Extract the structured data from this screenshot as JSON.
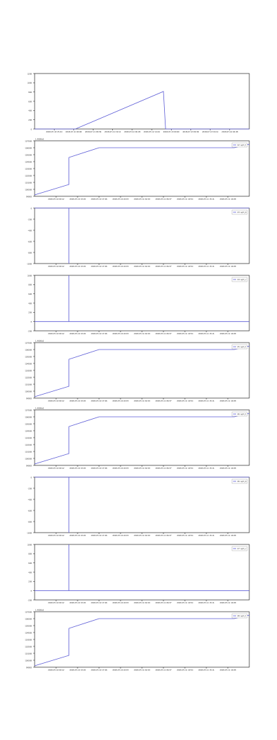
{
  "chart_data": [
    {
      "type": "line",
      "x_labels": [
        "2018-07-10 15:24",
        "2018-07-11 00:00",
        "2018-07-11 09:36",
        "2018-07-11 19:12",
        "2018-07-12 04:48",
        "2018-07-12 14:24",
        "2018-07-13 00:00",
        "2018-07-13 09:36",
        "2018-07-13 19:12",
        "2018-07-14 04:48"
      ],
      "y_ticks": [
        "0",
        "200",
        "400",
        "600",
        "800",
        "1000",
        "1200"
      ],
      "legend": "",
      "points": [
        [
          0,
          0
        ],
        [
          0.19,
          0
        ],
        [
          0.6,
          812
        ],
        [
          0.61,
          0
        ],
        [
          1,
          0
        ]
      ],
      "ylim": [
        0,
        1200
      ],
      "color": "#5b5bd6"
    },
    {
      "type": "line",
      "x_labels": [
        "2018-07-10 09:12",
        "2018-07-10 13:29",
        "2018-07-10 17:46",
        "2018-07-10 22:03",
        "2018-07-11 02:20",
        "2018-07-11 06:37",
        "2018-07-11 10:54",
        "2018-07-11 15:11",
        "2018-07-11 19:28"
      ],
      "y_ticks": [
        "99000",
        "100000",
        "101000",
        "102000",
        "103000",
        "104000",
        "105000",
        "106000",
        "107000"
      ],
      "offset": "1.4000e3",
      "legend": "12: sym_t",
      "points": [
        [
          0,
          99200
        ],
        [
          0.16,
          100700
        ],
        [
          0.16,
          104600
        ],
        [
          0.3,
          106000
        ],
        [
          0.93,
          106000
        ],
        [
          1,
          106500
        ]
      ],
      "ylim": [
        99000,
        107000
      ],
      "color": "#5b5bd6"
    },
    {
      "type": "line",
      "x_labels": [
        "2018-07-10 09:12",
        "2018-07-10 13:29",
        "2018-07-10 17:46",
        "2018-07-10 22:03",
        "2018-07-11 02:20",
        "2018-07-11 06:37",
        "2018-07-11 10:54",
        "2018-07-11 15:11",
        "2018-07-11 19:28"
      ],
      "y_ticks": [
        "0",
        "-200",
        "-400",
        "-600",
        "-800",
        "-1000"
      ],
      "legend": "13: sym_b",
      "points": [
        [
          0,
          0
        ],
        [
          0.16,
          0
        ],
        [
          0.16,
          -1000
        ],
        [
          0.16,
          0
        ],
        [
          1,
          0
        ]
      ],
      "ylim": [
        -1000,
        0
      ],
      "color": "#5b5bd6"
    },
    {
      "type": "line",
      "x_labels": [
        "2018-07-10 09:12",
        "2018-07-10 13:29",
        "2018-07-10 17:46",
        "2018-07-10 22:03",
        "2018-07-11 02:20",
        "2018-07-11 06:37",
        "2018-07-11 10:54",
        "2018-07-11 15:11",
        "2018-07-11 19:28"
      ],
      "y_ticks": [
        "1000",
        "800",
        "600",
        "400",
        "200",
        "0",
        "-200"
      ],
      "legend": "14: sym_c",
      "points": [
        [
          0,
          0
        ],
        [
          0.16,
          0
        ],
        [
          0.16,
          1000
        ],
        [
          0.16,
          0
        ],
        [
          1,
          0
        ]
      ],
      "ylim": [
        -200,
        1000
      ],
      "color": "#5b5bd6"
    },
    {
      "type": "line",
      "x_labels": [
        "2018-07-10 09:12",
        "2018-07-10 13:29",
        "2018-07-10 17:46",
        "2018-07-10 22:03",
        "2018-07-11 02:20",
        "2018-07-11 06:37",
        "2018-07-11 10:54",
        "2018-07-11 15:11",
        "2018-07-11 19:28"
      ],
      "y_ticks": [
        "99000",
        "100000",
        "101000",
        "102000",
        "103000",
        "104000",
        "105000",
        "106000",
        "107000"
      ],
      "offset": "1.4000e3",
      "legend": "15: sym_t",
      "points": [
        [
          0,
          99200
        ],
        [
          0.16,
          100700
        ],
        [
          0.16,
          104600
        ],
        [
          0.3,
          106000
        ],
        [
          0.93,
          106000
        ],
        [
          1,
          106500
        ]
      ],
      "ylim": [
        99000,
        107000
      ],
      "color": "#5b5bd6"
    },
    {
      "type": "line",
      "x_labels": [
        "2018-07-10 09:12",
        "2018-07-10 13:29",
        "2018-07-10 17:46",
        "2018-07-10 22:03",
        "2018-07-11 02:20",
        "2018-07-11 06:37",
        "2018-07-11 10:54",
        "2018-07-11 15:11",
        "2018-07-11 19:28"
      ],
      "y_ticks": [
        "99000",
        "100000",
        "101000",
        "102000",
        "103000",
        "104000",
        "105000",
        "106000",
        "107000"
      ],
      "offset": "1.4000e3",
      "legend": "16: sym_t",
      "points": [
        [
          0,
          99200
        ],
        [
          0.16,
          100700
        ],
        [
          0.16,
          104600
        ],
        [
          0.3,
          106000
        ],
        [
          0.93,
          106000
        ],
        [
          1,
          106500
        ]
      ],
      "ylim": [
        99000,
        107000
      ],
      "color": "#5b5bd6"
    },
    {
      "type": "line",
      "x_labels": [
        "2018-07-10 09:12",
        "2018-07-10 13:29",
        "2018-07-10 17:46",
        "2018-07-10 22:03",
        "2018-07-11 02:20",
        "2018-07-11 06:37",
        "2018-07-11 10:54",
        "2018-07-11 15:11",
        "2018-07-11 19:28"
      ],
      "y_ticks": [
        "0",
        "-200",
        "-400",
        "-600",
        "-800",
        "-1000"
      ],
      "legend": "16: sym_b",
      "points": [
        [
          0,
          0
        ],
        [
          0.16,
          0
        ],
        [
          0.16,
          -1000
        ],
        [
          0.16,
          0
        ],
        [
          1,
          0
        ]
      ],
      "ylim": [
        -1000,
        0
      ],
      "color": "#5b5bd6"
    },
    {
      "type": "line",
      "x_labels": [
        "2018-07-10 09:12",
        "2018-07-10 13:29",
        "2018-07-10 17:46",
        "2018-07-10 22:03",
        "2018-07-11 02:20",
        "2018-07-11 06:37",
        "2018-07-11 10:54",
        "2018-07-11 15:11",
        "2018-07-11 19:28"
      ],
      "y_ticks": [
        "1000",
        "800",
        "600",
        "400",
        "200",
        "0",
        "-200"
      ],
      "legend": "17: sym_c",
      "points": [
        [
          0,
          0
        ],
        [
          0.16,
          0
        ],
        [
          0.16,
          1000
        ],
        [
          0.16,
          0
        ],
        [
          1,
          0
        ]
      ],
      "ylim": [
        -200,
        1000
      ],
      "color": "#5b5bd6"
    },
    {
      "type": "line",
      "x_labels": [
        "2018-07-10 09:12",
        "2018-07-10 13:29",
        "2018-07-10 17:46",
        "2018-07-10 22:03",
        "2018-07-11 02:20",
        "2018-07-11 06:37",
        "2018-07-11 10:54",
        "2018-07-11 15:11",
        "2018-07-11 19:28"
      ],
      "y_ticks": [
        "99000",
        "100000",
        "101000",
        "102000",
        "103000",
        "104000",
        "105000",
        "106000",
        "107000"
      ],
      "offset": "1.4000e3",
      "legend": "18: sym_t",
      "points": [
        [
          0,
          99200
        ],
        [
          0.16,
          100700
        ],
        [
          0.16,
          104600
        ],
        [
          0.3,
          106000
        ],
        [
          0.93,
          106000
        ],
        [
          1,
          106500
        ]
      ],
      "ylim": [
        99000,
        107000
      ],
      "color": "#5b5bd6"
    }
  ]
}
